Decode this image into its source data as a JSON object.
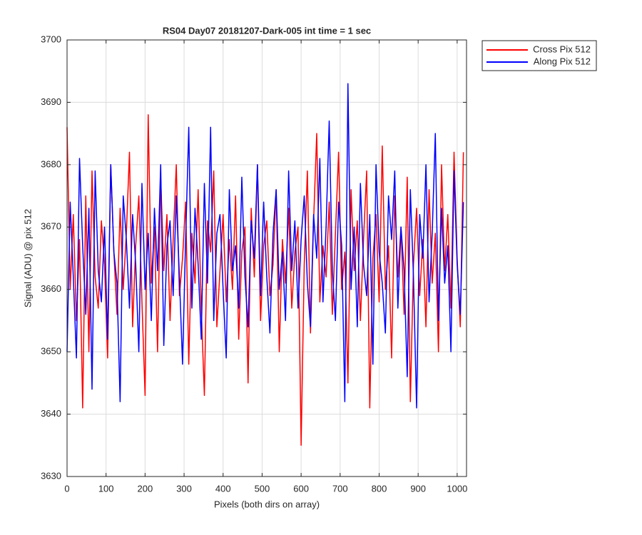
{
  "chart_data": {
    "type": "line",
    "title": "RS04 Day07 20181207-Dark-005 int time = 1 sec",
    "xlabel": "Pixels (both dirs on array)",
    "ylabel": "Signal (ADU) @ pix 512",
    "x": [
      0,
      8,
      16,
      24,
      32,
      40,
      48,
      56,
      64,
      72,
      80,
      88,
      96,
      104,
      112,
      120,
      128,
      136,
      144,
      152,
      160,
      168,
      176,
      184,
      192,
      200,
      208,
      216,
      224,
      232,
      240,
      248,
      256,
      264,
      272,
      280,
      288,
      296,
      304,
      312,
      320,
      328,
      336,
      344,
      352,
      360,
      368,
      376,
      384,
      392,
      400,
      408,
      416,
      424,
      432,
      440,
      448,
      456,
      464,
      472,
      480,
      488,
      496,
      504,
      512,
      520,
      528,
      536,
      544,
      552,
      560,
      568,
      576,
      584,
      592,
      600,
      608,
      616,
      624,
      632,
      640,
      648,
      656,
      664,
      672,
      680,
      688,
      696,
      704,
      712,
      720,
      728,
      736,
      744,
      752,
      760,
      768,
      776,
      784,
      792,
      800,
      808,
      816,
      824,
      832,
      840,
      848,
      856,
      864,
      872,
      880,
      888,
      896,
      904,
      912,
      920,
      928,
      936,
      944,
      952,
      960,
      968,
      976,
      984,
      992,
      1000,
      1008,
      1016
    ],
    "series": [
      {
        "name": "Cross Pix 512",
        "color": "#ff0000",
        "values": [
          3686,
          3660,
          3672,
          3655,
          3668,
          3641,
          3675,
          3650,
          3679,
          3662,
          3657,
          3671,
          3664,
          3649,
          3680,
          3666,
          3656,
          3673,
          3660,
          3669,
          3682,
          3654,
          3667,
          3675,
          3658,
          3643,
          3688,
          3661,
          3670,
          3650,
          3678,
          3663,
          3672,
          3655,
          3668,
          3680,
          3659,
          3665,
          3674,
          3648,
          3669,
          3661,
          3676,
          3657,
          3643,
          3671,
          3666,
          3679,
          3654,
          3663,
          3672,
          3658,
          3668,
          3660,
          3675,
          3652,
          3666,
          3670,
          3645,
          3673,
          3662,
          3680,
          3655,
          3667,
          3671,
          3659,
          3664,
          3676,
          3650,
          3668,
          3661,
          3673,
          3657,
          3666,
          3670,
          3635,
          3664,
          3679,
          3653,
          3671,
          3685,
          3658,
          3667,
          3662,
          3674,
          3656,
          3669,
          3682,
          3660,
          3666,
          3645,
          3676,
          3663,
          3671,
          3655,
          3668,
          3679,
          3641,
          3665,
          3672,
          3658,
          3683,
          3660,
          3667,
          3649,
          3675,
          3662,
          3670,
          3656,
          3678,
          3642,
          3664,
          3673,
          3659,
          3668,
          3654,
          3676,
          3661,
          3669,
          3650,
          3680,
          3663,
          3672,
          3657,
          3682,
          3665,
          3654,
          3682
        ]
      },
      {
        "name": "Along Pix 512",
        "color": "#0000ff",
        "values": [
          3650,
          3674,
          3662,
          3649,
          3681,
          3667,
          3656,
          3673,
          3644,
          3679,
          3663,
          3658,
          3670,
          3652,
          3680,
          3666,
          3661,
          3642,
          3675,
          3668,
          3657,
          3672,
          3664,
          3650,
          3677,
          3660,
          3669,
          3655,
          3673,
          3663,
          3680,
          3651,
          3667,
          3671,
          3659,
          3675,
          3662,
          3648,
          3668,
          3686,
          3657,
          3673,
          3664,
          3652,
          3677,
          3661,
          3686,
          3655,
          3669,
          3672,
          3660,
          3649,
          3676,
          3663,
          3667,
          3657,
          3678,
          3662,
          3654,
          3671,
          3665,
          3680,
          3659,
          3674,
          3662,
          3653,
          3669,
          3676,
          3660,
          3666,
          3655,
          3679,
          3663,
          3671,
          3657,
          3668,
          3675,
          3661,
          3654,
          3672,
          3665,
          3681,
          3658,
          3670,
          3687,
          3663,
          3655,
          3674,
          3667,
          3642,
          3693,
          3660,
          3670,
          3654,
          3677,
          3664,
          3659,
          3672,
          3648,
          3680,
          3666,
          3661,
          3653,
          3675,
          3668,
          3679,
          3657,
          3670,
          3663,
          3646,
          3676,
          3662,
          3641,
          3672,
          3665,
          3680,
          3658,
          3669,
          3685,
          3655,
          3673,
          3661,
          3667,
          3650,
          3679,
          3664,
          3656,
          3674
        ]
      }
    ],
    "xlim": [
      0,
      1024
    ],
    "xticks": [
      0,
      100,
      200,
      300,
      400,
      500,
      600,
      700,
      800,
      900,
      1000
    ],
    "ylim": [
      3630,
      3700
    ],
    "yticks": [
      3630,
      3640,
      3650,
      3660,
      3670,
      3680,
      3690,
      3700
    ],
    "grid": true,
    "legend": "outside-top-right"
  }
}
